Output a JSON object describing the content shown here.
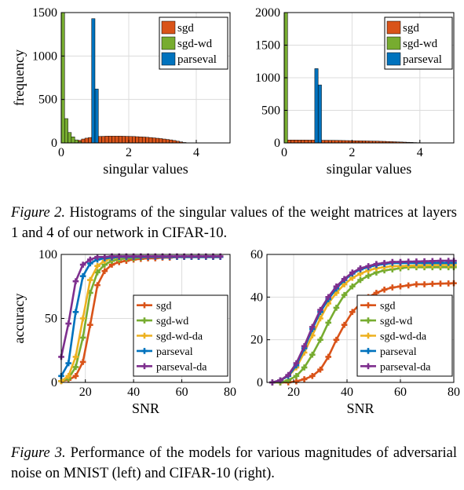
{
  "captions": {
    "fig2": {
      "label": "Figure 2.",
      "text": "Histograms of the singular values of the weight matrices at layers 1 and 4 of our network in CIFAR-10."
    },
    "fig3": {
      "label": "Figure 3.",
      "text": "Performance of the models for various magnitudes of adversarial noise on MNIST (left) and CIFAR-10 (right)."
    }
  },
  "colors": {
    "sgd": "#D95319",
    "sgd-wd": "#77AC30",
    "sgd-wd-da": "#EDB120",
    "parseval": "#0072BD",
    "parseval-da": "#7E2F8E"
  },
  "chart_data": [
    {
      "type": "bar",
      "xlabel": "singular values",
      "ylabel": "frequency",
      "xlim": [
        0,
        5
      ],
      "ylim": [
        0,
        1500
      ],
      "xticks": [
        "0",
        "2",
        "4"
      ],
      "yticks": [
        "0",
        "500",
        "1000",
        "1500"
      ],
      "grid": true,
      "legend": "top-right",
      "series": [
        {
          "name": "sgd",
          "bin_width": 0.1,
          "bins": [
            [
              0.5,
              30
            ],
            [
              0.6,
              45
            ],
            [
              0.7,
              55
            ],
            [
              0.8,
              62
            ],
            [
              0.9,
              68
            ],
            [
              1.0,
              72
            ],
            [
              1.1,
              75
            ],
            [
              1.2,
              76
            ],
            [
              1.3,
              78
            ],
            [
              1.4,
              78
            ],
            [
              1.5,
              78
            ],
            [
              1.6,
              78
            ],
            [
              1.7,
              78
            ],
            [
              1.8,
              77
            ],
            [
              1.9,
              76
            ],
            [
              2.0,
              75
            ],
            [
              2.1,
              74
            ],
            [
              2.2,
              72
            ],
            [
              2.3,
              70
            ],
            [
              2.4,
              68
            ],
            [
              2.5,
              65
            ],
            [
              2.6,
              62
            ],
            [
              2.7,
              58
            ],
            [
              2.8,
              54
            ],
            [
              2.9,
              50
            ],
            [
              3.0,
              45
            ],
            [
              3.1,
              40
            ],
            [
              3.2,
              35
            ],
            [
              3.3,
              28
            ],
            [
              3.4,
              20
            ],
            [
              3.5,
              12
            ],
            [
              3.6,
              5
            ]
          ]
        },
        {
          "name": "sgd-wd",
          "bin_width": 0.1,
          "bins": [
            [
              0.0,
              1500
            ],
            [
              0.1,
              280
            ],
            [
              0.2,
              120
            ],
            [
              0.3,
              70
            ],
            [
              0.4,
              35
            ],
            [
              0.5,
              15
            ]
          ]
        },
        {
          "name": "parseval",
          "bin_width": 0.1,
          "bins": [
            [
              0.9,
              1430
            ],
            [
              1.0,
              620
            ]
          ]
        }
      ]
    },
    {
      "type": "bar",
      "xlabel": "singular values",
      "ylabel": "",
      "xlim": [
        0,
        5
      ],
      "ylim": [
        0,
        2000
      ],
      "xticks": [
        "0",
        "2",
        "4"
      ],
      "yticks": [
        "0",
        "500",
        "1000",
        "1500",
        "2000"
      ],
      "grid": true,
      "legend": "top-right",
      "series": [
        {
          "name": "sgd",
          "bin_width": 0.1,
          "bins": [
            [
              0.0,
              45
            ],
            [
              0.1,
              45
            ],
            [
              0.2,
              45
            ],
            [
              0.3,
              45
            ],
            [
              0.4,
              44
            ],
            [
              0.5,
              44
            ],
            [
              0.6,
              44
            ],
            [
              0.7,
              43
            ],
            [
              0.8,
              43
            ],
            [
              0.9,
              42
            ],
            [
              1.0,
              42
            ],
            [
              1.1,
              41
            ],
            [
              1.2,
              41
            ],
            [
              1.3,
              40
            ],
            [
              1.4,
              40
            ],
            [
              1.5,
              39
            ],
            [
              1.6,
              38
            ],
            [
              1.7,
              37
            ],
            [
              1.8,
              36
            ],
            [
              1.9,
              35
            ],
            [
              2.0,
              34
            ],
            [
              2.1,
              33
            ],
            [
              2.2,
              32
            ],
            [
              2.3,
              31
            ],
            [
              2.4,
              30
            ],
            [
              2.5,
              29
            ],
            [
              2.6,
              28
            ],
            [
              2.7,
              27
            ],
            [
              2.8,
              25
            ],
            [
              2.9,
              24
            ],
            [
              3.0,
              22
            ],
            [
              3.1,
              20
            ],
            [
              3.2,
              18
            ],
            [
              3.3,
              16
            ],
            [
              3.4,
              14
            ],
            [
              3.5,
              12
            ],
            [
              3.6,
              10
            ],
            [
              3.7,
              8
            ],
            [
              3.8,
              6
            ],
            [
              3.9,
              4
            ],
            [
              4.0,
              2
            ]
          ]
        },
        {
          "name": "sgd-wd",
          "bin_width": 0.1,
          "bins": [
            [
              0.0,
              2040
            ]
          ]
        },
        {
          "name": "parseval",
          "bin_width": 0.1,
          "bins": [
            [
              0.9,
              1140
            ],
            [
              1.0,
              890
            ]
          ]
        }
      ]
    },
    {
      "type": "line",
      "xlabel": "SNR",
      "ylabel": "accuracy",
      "xlim": [
        10,
        80
      ],
      "ylim": [
        0,
        100
      ],
      "xticks": [
        "20",
        "40",
        "60",
        "80"
      ],
      "yticks": [
        "0",
        "50",
        "100"
      ],
      "grid": true,
      "legend": "bottom-right",
      "x": [
        10,
        13,
        16,
        19,
        22,
        25,
        28,
        31,
        34,
        37,
        40,
        43,
        46,
        49,
        52,
        55,
        58,
        61,
        64,
        67,
        70,
        73,
        76
      ],
      "series": [
        {
          "name": "sgd",
          "values": [
            1,
            2,
            5,
            16,
            45,
            76,
            87,
            92,
            94,
            95,
            96,
            96.5,
            97,
            97,
            97.5,
            97.5,
            98,
            98,
            98,
            98,
            98,
            98,
            98
          ]
        },
        {
          "name": "sgd-wd",
          "values": [
            1,
            3,
            12,
            35,
            70,
            86,
            92,
            95,
            96,
            97,
            97,
            97.5,
            98,
            98,
            98,
            98,
            98,
            98,
            98,
            98,
            98,
            98,
            98
          ]
        },
        {
          "name": "sgd-wd-da",
          "values": [
            1,
            5,
            20,
            50,
            80,
            91,
            95,
            97,
            97.5,
            98,
            98,
            98,
            98,
            98,
            98,
            98,
            98,
            98,
            98,
            98,
            98,
            98,
            98
          ]
        },
        {
          "name": "parseval",
          "values": [
            5,
            15,
            55,
            83,
            93,
            96,
            97,
            97.5,
            98,
            98,
            98,
            98,
            98,
            98,
            98,
            98,
            98,
            98,
            98,
            98,
            98,
            98,
            98
          ]
        },
        {
          "name": "parseval-da",
          "values": [
            20,
            46,
            79,
            92,
            96,
            98,
            98,
            98.5,
            98.5,
            98.5,
            98.5,
            98.5,
            98.5,
            98.5,
            98.5,
            98.5,
            98.5,
            98.5,
            98.5,
            98.5,
            98.5,
            98.5,
            98.5
          ]
        }
      ]
    },
    {
      "type": "line",
      "xlabel": "SNR",
      "ylabel": "",
      "xlim": [
        10,
        80
      ],
      "ylim": [
        0,
        60
      ],
      "xticks": [
        "20",
        "40",
        "60",
        "80"
      ],
      "yticks": [
        "0",
        "20",
        "40",
        "60"
      ],
      "grid": true,
      "legend": "bottom-right",
      "x": [
        12,
        15,
        18,
        21,
        24,
        27,
        30,
        33,
        36,
        39,
        42,
        45,
        48,
        51,
        54,
        57,
        60,
        63,
        66,
        69,
        72,
        75,
        78,
        80
      ],
      "series": [
        {
          "name": "sgd",
          "values": [
            0,
            0,
            0,
            0.5,
            1.5,
            3,
            6,
            12,
            20,
            27,
            33,
            37,
            40,
            42,
            43.5,
            44.5,
            45,
            45.5,
            46,
            46,
            46.2,
            46.3,
            46.4,
            46.5
          ]
        },
        {
          "name": "sgd-wd",
          "values": [
            0,
            0,
            1,
            3,
            7,
            13,
            20,
            28,
            35,
            41,
            45,
            48,
            50,
            51.5,
            52.5,
            53,
            53.5,
            54,
            54,
            54,
            54,
            54,
            54,
            54
          ]
        },
        {
          "name": "sgd-wd-da",
          "values": [
            0,
            1,
            3,
            7,
            14,
            22,
            30,
            37,
            42,
            46,
            49,
            51,
            52.5,
            53.5,
            54,
            54.5,
            54.5,
            54.7,
            54.8,
            54.9,
            55,
            55,
            55,
            55
          ]
        },
        {
          "name": "parseval",
          "values": [
            0,
            1,
            3,
            8,
            16,
            25,
            33,
            39,
            44,
            48,
            51,
            53,
            54,
            55,
            55.5,
            56,
            56,
            56,
            56,
            56,
            56,
            56,
            56,
            56
          ]
        },
        {
          "name": "parseval-da",
          "values": [
            0,
            1,
            3.5,
            9,
            17,
            26,
            34,
            40,
            45,
            48.5,
            51.5,
            53.5,
            54.5,
            55.5,
            56,
            56.5,
            56.5,
            56.6,
            56.7,
            56.8,
            56.9,
            57,
            57,
            57
          ]
        }
      ]
    }
  ]
}
